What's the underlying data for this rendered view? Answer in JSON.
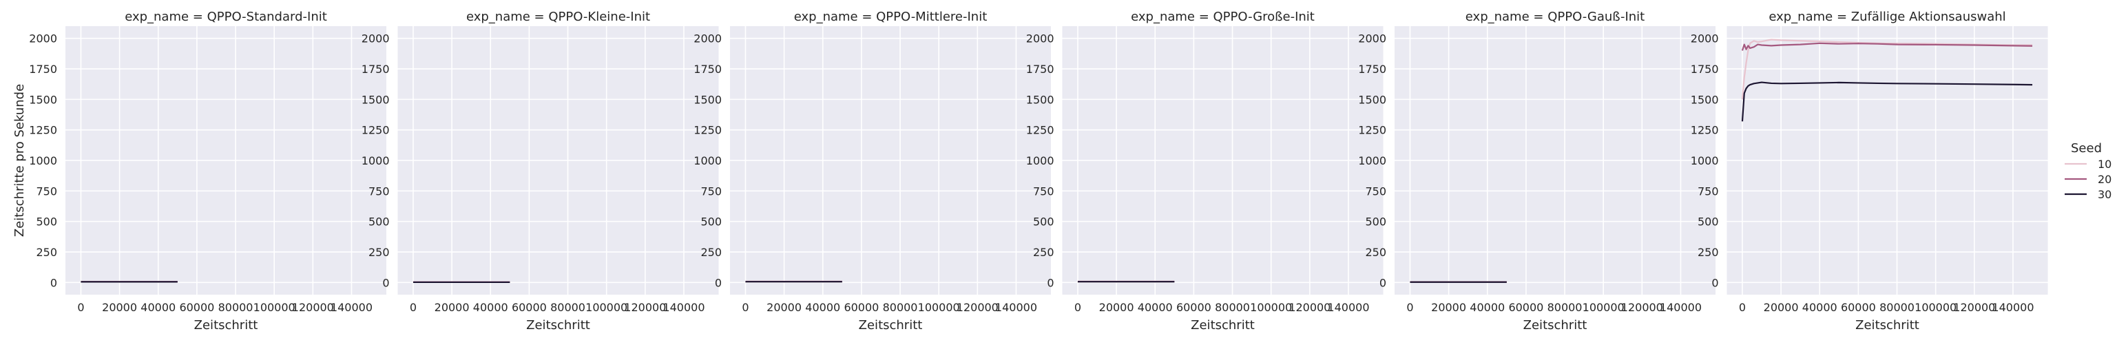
{
  "figure": {
    "ylabel": "Zeitschritte pro Sekunde",
    "xlabel": "Zeitschritt",
    "legend_title": "Seed"
  },
  "colors": {
    "panel_bg": "#eaeaf2",
    "grid": "#ffffff",
    "seed_10": "#e8c3ce",
    "seed_20": "#a4587f",
    "seed_30": "#1c1531"
  },
  "chart_data": [
    {
      "type": "line",
      "title": "exp_name = QPPO-Standard-Init",
      "xlabel": "Zeitschritt",
      "ylabel": "Zeitschritte pro Sekunde",
      "xlim": [
        -8000,
        158000
      ],
      "ylim": [
        -100,
        2100
      ],
      "xticks": [
        0,
        20000,
        40000,
        60000,
        80000,
        100000,
        120000,
        140000
      ],
      "yticks": [
        0,
        250,
        500,
        750,
        1000,
        1250,
        1500,
        1750,
        2000
      ],
      "grid": true,
      "series": [
        {
          "name": "10",
          "x": [
            0,
            50000
          ],
          "y": [
            7,
            7
          ]
        },
        {
          "name": "20",
          "x": [
            0,
            50000
          ],
          "y": [
            6,
            6
          ]
        },
        {
          "name": "30",
          "x": [
            0,
            50000
          ],
          "y": [
            5,
            5
          ]
        }
      ]
    },
    {
      "type": "line",
      "title": "exp_name = QPPO-Kleine-Init",
      "xlabel": "Zeitschritt",
      "ylabel": "",
      "xlim": [
        -8000,
        158000
      ],
      "ylim": [
        -100,
        2100
      ],
      "xticks": [
        0,
        20000,
        40000,
        60000,
        80000,
        100000,
        120000,
        140000
      ],
      "yticks": [
        0,
        250,
        500,
        750,
        1000,
        1250,
        1500,
        1750,
        2000
      ],
      "grid": true,
      "series": [
        {
          "name": "10",
          "x": [
            0,
            50000
          ],
          "y": [
            4,
            4
          ]
        },
        {
          "name": "20",
          "x": [
            0,
            50000
          ],
          "y": [
            3,
            3
          ]
        },
        {
          "name": "30",
          "x": [
            0,
            50000
          ],
          "y": [
            2,
            2
          ]
        }
      ]
    },
    {
      "type": "line",
      "title": "exp_name = QPPO-Mittlere-Init",
      "xlabel": "Zeitschritt",
      "ylabel": "",
      "xlim": [
        -8000,
        158000
      ],
      "ylim": [
        -100,
        2100
      ],
      "xticks": [
        0,
        20000,
        40000,
        60000,
        80000,
        100000,
        120000,
        140000
      ],
      "yticks": [
        0,
        250,
        500,
        750,
        1000,
        1250,
        1500,
        1750,
        2000
      ],
      "grid": true,
      "series": [
        {
          "name": "10",
          "x": [
            0,
            50000
          ],
          "y": [
            8,
            8
          ]
        },
        {
          "name": "20",
          "x": [
            0,
            50000
          ],
          "y": [
            7,
            7
          ]
        },
        {
          "name": "30",
          "x": [
            0,
            50000
          ],
          "y": [
            6,
            6
          ]
        }
      ]
    },
    {
      "type": "line",
      "title": "exp_name = QPPO-Große-Init",
      "xlabel": "Zeitschritt",
      "ylabel": "",
      "xlim": [
        -8000,
        158000
      ],
      "ylim": [
        -100,
        2100
      ],
      "xticks": [
        0,
        20000,
        40000,
        60000,
        80000,
        100000,
        120000,
        140000
      ],
      "yticks": [
        0,
        250,
        500,
        750,
        1000,
        1250,
        1500,
        1750,
        2000
      ],
      "grid": true,
      "series": [
        {
          "name": "10",
          "x": [
            0,
            50000
          ],
          "y": [
            8,
            8
          ]
        },
        {
          "name": "20",
          "x": [
            0,
            50000
          ],
          "y": [
            7,
            7
          ]
        },
        {
          "name": "30",
          "x": [
            0,
            50000
          ],
          "y": [
            6,
            6
          ]
        }
      ]
    },
    {
      "type": "line",
      "title": "exp_name = QPPO-Gauß-Init",
      "xlabel": "Zeitschritt",
      "ylabel": "",
      "xlim": [
        -8000,
        158000
      ],
      "ylim": [
        -100,
        2100
      ],
      "xticks": [
        0,
        20000,
        40000,
        60000,
        80000,
        100000,
        120000,
        140000
      ],
      "yticks": [
        0,
        250,
        500,
        750,
        1000,
        1250,
        1500,
        1750,
        2000
      ],
      "grid": true,
      "series": [
        {
          "name": "10",
          "x": [
            0,
            50000
          ],
          "y": [
            5,
            5
          ]
        },
        {
          "name": "20",
          "x": [
            0,
            50000
          ],
          "y": [
            4,
            4
          ]
        },
        {
          "name": "30",
          "x": [
            0,
            50000
          ],
          "y": [
            3,
            3
          ]
        }
      ]
    },
    {
      "type": "line",
      "title": "exp_name = Zufällige Aktionsauswahl",
      "xlabel": "Zeitschritt",
      "ylabel": "",
      "xlim": [
        -8000,
        158000
      ],
      "ylim": [
        -100,
        2100
      ],
      "xticks": [
        0,
        20000,
        40000,
        60000,
        80000,
        100000,
        120000,
        140000
      ],
      "yticks": [
        0,
        250,
        500,
        750,
        1000,
        1250,
        1500,
        1750,
        2000
      ],
      "grid": true,
      "series": [
        {
          "name": "10",
          "x": [
            0,
            1000,
            2000,
            3000,
            4000,
            6000,
            8000,
            10000,
            15000,
            20000,
            30000,
            40000,
            50000,
            60000,
            70000,
            80000,
            100000,
            120000,
            140000,
            150000
          ],
          "y": [
            1500,
            1680,
            1800,
            1900,
            1960,
            1980,
            1970,
            1975,
            1990,
            1985,
            1980,
            1975,
            1970,
            1965,
            1960,
            1958,
            1955,
            1950,
            1945,
            1945
          ]
        },
        {
          "name": "20",
          "x": [
            0,
            1000,
            2000,
            3000,
            4000,
            6000,
            8000,
            10000,
            15000,
            20000,
            30000,
            40000,
            50000,
            60000,
            70000,
            80000,
            100000,
            120000,
            140000,
            150000
          ],
          "y": [
            1900,
            1950,
            1910,
            1940,
            1920,
            1930,
            1950,
            1945,
            1940,
            1945,
            1950,
            1960,
            1955,
            1958,
            1955,
            1950,
            1948,
            1945,
            1940,
            1938
          ]
        },
        {
          "name": "30",
          "x": [
            0,
            1000,
            2000,
            3000,
            4000,
            6000,
            8000,
            10000,
            15000,
            20000,
            30000,
            40000,
            50000,
            60000,
            70000,
            80000,
            100000,
            120000,
            140000,
            150000
          ],
          "y": [
            1320,
            1550,
            1590,
            1610,
            1620,
            1630,
            1635,
            1640,
            1632,
            1630,
            1632,
            1635,
            1638,
            1635,
            1632,
            1630,
            1628,
            1625,
            1622,
            1620
          ]
        }
      ]
    }
  ]
}
